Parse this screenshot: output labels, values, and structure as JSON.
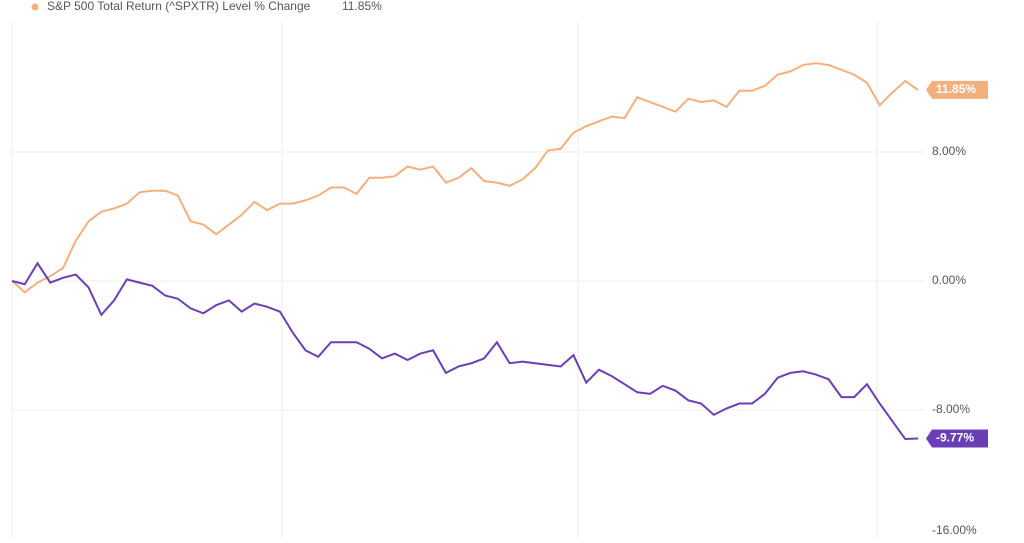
{
  "chart_data": {
    "type": "line",
    "series": [
      {
        "name": "S&P 500 Total Return (^SPXTR) Level % Change",
        "color": "#f2b07e",
        "values": [
          0,
          -0.7,
          -0.1,
          0.3,
          0.8,
          2.5,
          3.7,
          4.3,
          4.5,
          4.8,
          5.5,
          5.6,
          5.6,
          5.3,
          3.7,
          3.5,
          2.9,
          3.5,
          4.1,
          4.9,
          4.4,
          4.8,
          4.8,
          5.0,
          5.3,
          5.8,
          5.8,
          5.4,
          6.4,
          6.4,
          6.5,
          7.1,
          6.9,
          7.1,
          6.1,
          6.4,
          7.0,
          6.2,
          6.1,
          5.9,
          6.3,
          7.0,
          8.1,
          8.2,
          9.2,
          9.6,
          9.9,
          10.2,
          10.1,
          11.4,
          11.1,
          10.8,
          10.5,
          11.3,
          11.1,
          11.2,
          10.8,
          11.8,
          11.8,
          12.1,
          12.8,
          13.0,
          13.4,
          13.5,
          13.4,
          13.1,
          12.8,
          12.3,
          10.9,
          11.7,
          12.4,
          11.85
        ],
        "value_labels": [
          null,
          null,
          null,
          null,
          null,
          null,
          null,
          null,
          null,
          null,
          null,
          null,
          null,
          null,
          null,
          null,
          null,
          null,
          null,
          null,
          null,
          null,
          null,
          null,
          null,
          null,
          null,
          null,
          null,
          null,
          null,
          null,
          null,
          null,
          null,
          null,
          null,
          null,
          null,
          null,
          null,
          null,
          null,
          null,
          null,
          null,
          null,
          null,
          null,
          null,
          null,
          null,
          null,
          null,
          null,
          null,
          null,
          null,
          null,
          null,
          null,
          null,
          null,
          null,
          null,
          null,
          null,
          null,
          null,
          null,
          null,
          "11.85%"
        ]
      },
      {
        "color": "#6a3fb5",
        "values": [
          0,
          -0.2,
          1.1,
          -0.1,
          0.2,
          0.4,
          -0.4,
          -2.1,
          -1.2,
          0.1,
          -0.1,
          -0.3,
          -0.9,
          -1.1,
          -1.7,
          -2.0,
          -1.5,
          -1.2,
          -1.9,
          -1.4,
          -1.6,
          -1.9,
          -3.2,
          -4.3,
          -4.7,
          -3.8,
          -3.8,
          -3.8,
          -4.2,
          -4.8,
          -4.5,
          -4.9,
          -4.5,
          -4.3,
          -5.7,
          -5.3,
          -5.1,
          -4.8,
          -3.8,
          -5.1,
          -5.0,
          -5.1,
          -5.2,
          -5.3,
          -4.6,
          -6.3,
          -5.5,
          -5.9,
          -6.4,
          -6.9,
          -7.0,
          -6.5,
          -6.8,
          -7.4,
          -7.6,
          -8.3,
          -7.9,
          -7.6,
          -7.6,
          -7.0,
          -6.0,
          -5.7,
          -5.6,
          -5.8,
          -6.1,
          -7.2,
          -7.2,
          -6.4,
          -7.6,
          -8.7,
          -9.8,
          -9.77
        ],
        "value_labels": [
          null,
          null,
          null,
          null,
          null,
          null,
          null,
          null,
          null,
          null,
          null,
          null,
          null,
          null,
          null,
          null,
          null,
          null,
          null,
          null,
          null,
          null,
          null,
          null,
          null,
          null,
          null,
          null,
          null,
          null,
          null,
          null,
          null,
          null,
          null,
          null,
          null,
          null,
          null,
          null,
          null,
          null,
          null,
          null,
          null,
          null,
          null,
          null,
          null,
          null,
          null,
          null,
          null,
          null,
          null,
          null,
          null,
          null,
          null,
          null,
          null,
          null,
          null,
          null,
          null,
          null,
          null,
          null,
          null,
          null,
          null,
          "-9.77%"
        ]
      }
    ],
    "ylim": [
      -16,
      16
    ],
    "yticks": [
      {
        "value": 8,
        "label": "8.00%"
      },
      {
        "value": 0,
        "label": "0.00%"
      },
      {
        "value": -8,
        "label": "-8.00%"
      },
      {
        "value": -16,
        "label": "-16.00%"
      }
    ],
    "grid": true
  }
}
